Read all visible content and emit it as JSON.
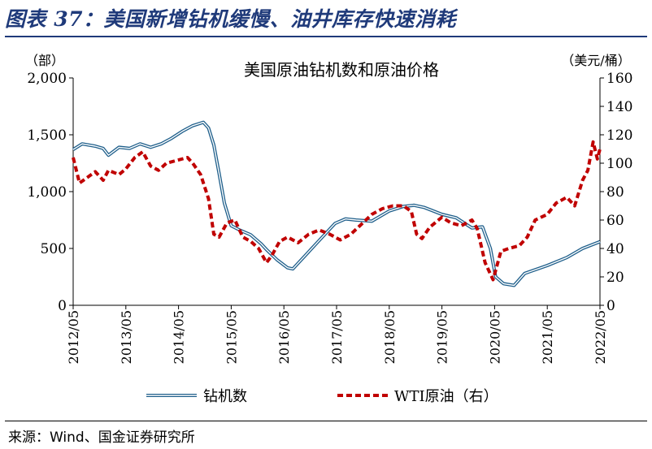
{
  "figure_title": "图表 37：美国新增钻机缓慢、油井库存快速消耗",
  "source_text": "来源：Wind、国金证券研究所",
  "chart_data": {
    "type": "line",
    "title": "美国原油钻机数和原油价格",
    "left_axis_unit": "（部）",
    "right_axis_unit": "（美元/桶）",
    "left_ylim": [
      0,
      2000
    ],
    "right_ylim": [
      0,
      160
    ],
    "left_ticks": [
      "0",
      "500",
      "1,000",
      "1,500",
      "2,000"
    ],
    "right_ticks": [
      "0",
      "20",
      "40",
      "60",
      "80",
      "100",
      "120",
      "140",
      "160"
    ],
    "x_ticks": [
      "2012/05",
      "2013/05",
      "2014/05",
      "2015/05",
      "2016/05",
      "2017/05",
      "2018/05",
      "2019/05",
      "2020/05",
      "2021/05",
      "2022/05"
    ],
    "x_range": [
      2012.33,
      2022.33
    ],
    "legend_position": "bottom",
    "series": [
      {
        "name": "钻机数",
        "axis": "left",
        "color": "#1f5f8b",
        "style": "double-line",
        "points": [
          [
            2012.33,
            1370
          ],
          [
            2012.5,
            1420
          ],
          [
            2012.75,
            1400
          ],
          [
            2012.9,
            1380
          ],
          [
            2013.0,
            1320
          ],
          [
            2013.2,
            1390
          ],
          [
            2013.4,
            1380
          ],
          [
            2013.6,
            1420
          ],
          [
            2013.8,
            1390
          ],
          [
            2014.0,
            1420
          ],
          [
            2014.2,
            1470
          ],
          [
            2014.4,
            1530
          ],
          [
            2014.6,
            1580
          ],
          [
            2014.8,
            1610
          ],
          [
            2014.9,
            1560
          ],
          [
            2015.0,
            1410
          ],
          [
            2015.1,
            1160
          ],
          [
            2015.2,
            900
          ],
          [
            2015.33,
            700
          ],
          [
            2015.5,
            660
          ],
          [
            2015.7,
            620
          ],
          [
            2015.9,
            540
          ],
          [
            2016.0,
            490
          ],
          [
            2016.2,
            400
          ],
          [
            2016.4,
            330
          ],
          [
            2016.5,
            320
          ],
          [
            2016.7,
            420
          ],
          [
            2016.9,
            520
          ],
          [
            2017.1,
            620
          ],
          [
            2017.3,
            720
          ],
          [
            2017.5,
            760
          ],
          [
            2017.7,
            750
          ],
          [
            2018.0,
            740
          ],
          [
            2018.33,
            830
          ],
          [
            2018.6,
            870
          ],
          [
            2018.8,
            880
          ],
          [
            2019.0,
            860
          ],
          [
            2019.33,
            800
          ],
          [
            2019.6,
            770
          ],
          [
            2019.9,
            680
          ],
          [
            2020.1,
            690
          ],
          [
            2020.25,
            500
          ],
          [
            2020.35,
            250
          ],
          [
            2020.5,
            190
          ],
          [
            2020.7,
            175
          ],
          [
            2020.9,
            280
          ],
          [
            2021.33,
            350
          ],
          [
            2021.7,
            420
          ],
          [
            2022.0,
            500
          ],
          [
            2022.33,
            560
          ]
        ]
      },
      {
        "name": "WTI原油（右）",
        "axis": "right",
        "color": "#c00000",
        "style": "dashed",
        "points": [
          [
            2012.33,
            104
          ],
          [
            2012.45,
            86
          ],
          [
            2012.6,
            90
          ],
          [
            2012.75,
            94
          ],
          [
            2012.9,
            88
          ],
          [
            2013.0,
            95
          ],
          [
            2013.2,
            92
          ],
          [
            2013.33,
            96
          ],
          [
            2013.5,
            104
          ],
          [
            2013.65,
            108
          ],
          [
            2013.8,
            98
          ],
          [
            2013.95,
            95
          ],
          [
            2014.1,
            100
          ],
          [
            2014.3,
            102
          ],
          [
            2014.5,
            104
          ],
          [
            2014.6,
            100
          ],
          [
            2014.75,
            92
          ],
          [
            2014.9,
            75
          ],
          [
            2015.0,
            50
          ],
          [
            2015.1,
            48
          ],
          [
            2015.25,
            58
          ],
          [
            2015.4,
            60
          ],
          [
            2015.55,
            48
          ],
          [
            2015.7,
            45
          ],
          [
            2015.85,
            40
          ],
          [
            2016.0,
            30
          ],
          [
            2016.1,
            35
          ],
          [
            2016.25,
            45
          ],
          [
            2016.4,
            48
          ],
          [
            2016.6,
            44
          ],
          [
            2016.8,
            50
          ],
          [
            2017.0,
            53
          ],
          [
            2017.2,
            50
          ],
          [
            2017.4,
            46
          ],
          [
            2017.6,
            50
          ],
          [
            2017.8,
            57
          ],
          [
            2018.0,
            64
          ],
          [
            2018.2,
            68
          ],
          [
            2018.4,
            70
          ],
          [
            2018.6,
            70
          ],
          [
            2018.75,
            66
          ],
          [
            2018.85,
            50
          ],
          [
            2018.95,
            47
          ],
          [
            2019.1,
            55
          ],
          [
            2019.33,
            62
          ],
          [
            2019.5,
            58
          ],
          [
            2019.7,
            56
          ],
          [
            2019.9,
            60
          ],
          [
            2020.0,
            54
          ],
          [
            2020.15,
            30
          ],
          [
            2020.3,
            18
          ],
          [
            2020.45,
            38
          ],
          [
            2020.6,
            40
          ],
          [
            2020.8,
            42
          ],
          [
            2020.95,
            48
          ],
          [
            2021.1,
            60
          ],
          [
            2021.33,
            64
          ],
          [
            2021.5,
            72
          ],
          [
            2021.7,
            76
          ],
          [
            2021.85,
            70
          ],
          [
            2022.0,
            88
          ],
          [
            2022.1,
            95
          ],
          [
            2022.2,
            115
          ],
          [
            2022.28,
            103
          ],
          [
            2022.33,
            110
          ]
        ]
      }
    ]
  }
}
